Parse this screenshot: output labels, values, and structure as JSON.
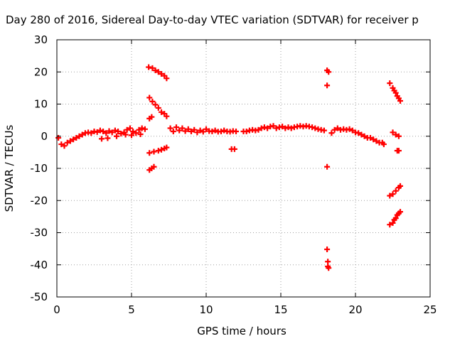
{
  "chart_data": {
    "type": "scatter",
    "title": "Day 280 of 2016, Sidereal Day-to-day VTEC variation (SDTVAR) for receiver p",
    "xlabel": "GPS time / hours",
    "ylabel": "SDTVAR / TECUs",
    "xlim": [
      0,
      25
    ],
    "ylim": [
      -50,
      30
    ],
    "x_ticks": [
      0,
      5,
      10,
      15,
      20,
      25
    ],
    "y_ticks": [
      -50,
      -40,
      -30,
      -20,
      -10,
      0,
      10,
      20,
      30
    ],
    "x_tick_labels": [
      "0",
      "5",
      "10",
      "15",
      "20",
      "25"
    ],
    "y_tick_labels": [
      "-50",
      "-40",
      "-30",
      "-20",
      "-10",
      "0",
      "10",
      "20",
      "30"
    ],
    "grid": true,
    "marker": "+",
    "series_color": "#ff0000",
    "series": [
      {
        "name": "SDTVAR",
        "points": [
          [
            0.1,
            -0.5
          ],
          [
            0.3,
            -2.5
          ],
          [
            0.5,
            -3.0
          ],
          [
            0.7,
            -2.0
          ],
          [
            0.9,
            -1.5
          ],
          [
            1.1,
            -1.0
          ],
          [
            1.3,
            -0.5
          ],
          [
            1.5,
            0.0
          ],
          [
            1.7,
            0.5
          ],
          [
            1.9,
            1.0
          ],
          [
            2.1,
            1.2
          ],
          [
            2.3,
            1.0
          ],
          [
            2.5,
            1.5
          ],
          [
            2.7,
            1.3
          ],
          [
            2.9,
            1.8
          ],
          [
            3.1,
            1.5
          ],
          [
            3.3,
            1.0
          ],
          [
            3.5,
            1.6
          ],
          [
            3.7,
            1.2
          ],
          [
            3.9,
            1.8
          ],
          [
            4.1,
            1.5
          ],
          [
            4.3,
            0.8
          ],
          [
            4.5,
            1.2
          ],
          [
            4.7,
            2.0
          ],
          [
            4.9,
            2.5
          ],
          [
            5.1,
            1.5
          ],
          [
            5.3,
            1.0
          ],
          [
            5.5,
            2.0
          ],
          [
            5.7,
            2.5
          ],
          [
            5.9,
            2.2
          ],
          [
            3.0,
            -0.8
          ],
          [
            3.4,
            -0.6
          ],
          [
            4.0,
            0.0
          ],
          [
            4.6,
            0.5
          ],
          [
            5.0,
            0.3
          ],
          [
            5.6,
            0.6
          ],
          [
            6.15,
            21.5
          ],
          [
            6.4,
            21.2
          ],
          [
            6.6,
            20.5
          ],
          [
            6.8,
            20.0
          ],
          [
            7.0,
            19.4
          ],
          [
            7.2,
            18.8
          ],
          [
            7.35,
            18.0
          ],
          [
            6.2,
            12.0
          ],
          [
            6.4,
            10.8
          ],
          [
            6.6,
            9.8
          ],
          [
            6.8,
            8.8
          ],
          [
            7.0,
            7.5
          ],
          [
            7.2,
            7.0
          ],
          [
            7.35,
            6.2
          ],
          [
            6.2,
            5.5
          ],
          [
            6.35,
            6.0
          ],
          [
            6.2,
            -10.5
          ],
          [
            6.35,
            -10.0
          ],
          [
            6.5,
            -9.5
          ],
          [
            6.2,
            -5.2
          ],
          [
            6.5,
            -4.8
          ],
          [
            6.8,
            -4.5
          ],
          [
            7.0,
            -4.2
          ],
          [
            7.2,
            -3.8
          ],
          [
            7.35,
            -3.5
          ],
          [
            7.6,
            2.5
          ],
          [
            7.8,
            1.5
          ],
          [
            8.0,
            2.8
          ],
          [
            8.2,
            1.8
          ],
          [
            8.4,
            2.5
          ],
          [
            8.6,
            1.6
          ],
          [
            8.8,
            2.2
          ],
          [
            9.0,
            1.5
          ],
          [
            9.2,
            2.0
          ],
          [
            9.4,
            1.2
          ],
          [
            9.6,
            1.8
          ],
          [
            9.8,
            1.4
          ],
          [
            10.0,
            2.2
          ],
          [
            10.2,
            1.6
          ],
          [
            10.4,
            1.5
          ],
          [
            10.6,
            1.8
          ],
          [
            10.8,
            1.4
          ],
          [
            11.0,
            1.5
          ],
          [
            11.2,
            1.8
          ],
          [
            11.4,
            1.5
          ],
          [
            11.6,
            1.4
          ],
          [
            11.8,
            1.6
          ],
          [
            12.0,
            1.5
          ],
          [
            11.7,
            -4.0
          ],
          [
            11.9,
            -4.0
          ],
          [
            12.5,
            1.5
          ],
          [
            12.7,
            1.5
          ],
          [
            12.9,
            1.8
          ],
          [
            13.1,
            2.0
          ],
          [
            13.3,
            1.8
          ],
          [
            13.5,
            2.0
          ],
          [
            13.7,
            2.5
          ],
          [
            13.9,
            2.8
          ],
          [
            14.1,
            2.5
          ],
          [
            14.3,
            3.0
          ],
          [
            14.5,
            3.2
          ],
          [
            14.7,
            2.5
          ],
          [
            14.9,
            2.8
          ],
          [
            15.1,
            3.0
          ],
          [
            15.3,
            2.5
          ],
          [
            15.5,
            2.8
          ],
          [
            15.7,
            2.5
          ],
          [
            15.9,
            2.8
          ],
          [
            16.1,
            3.0
          ],
          [
            16.3,
            3.2
          ],
          [
            16.5,
            3.0
          ],
          [
            16.7,
            3.2
          ],
          [
            16.9,
            3.0
          ],
          [
            17.1,
            2.8
          ],
          [
            17.3,
            2.5
          ],
          [
            17.5,
            2.2
          ],
          [
            17.7,
            2.0
          ],
          [
            17.9,
            1.8
          ],
          [
            18.1,
            20.5
          ],
          [
            18.2,
            20.0
          ],
          [
            18.1,
            15.8
          ],
          [
            18.1,
            -9.5
          ],
          [
            18.1,
            -35.2
          ],
          [
            18.15,
            -39.0
          ],
          [
            18.15,
            -40.5
          ],
          [
            18.2,
            -41.0
          ],
          [
            18.4,
            1.0
          ],
          [
            18.6,
            2.0
          ],
          [
            18.8,
            2.5
          ],
          [
            19.0,
            2.0
          ],
          [
            19.2,
            2.2
          ],
          [
            19.4,
            2.0
          ],
          [
            19.6,
            2.2
          ],
          [
            19.8,
            1.8
          ],
          [
            20.0,
            1.2
          ],
          [
            20.2,
            1.0
          ],
          [
            20.4,
            0.5
          ],
          [
            20.6,
            0.0
          ],
          [
            20.8,
            -0.5
          ],
          [
            21.0,
            -0.5
          ],
          [
            21.2,
            -1.0
          ],
          [
            21.4,
            -1.5
          ],
          [
            21.6,
            -2.0
          ],
          [
            21.8,
            -2.0
          ],
          [
            21.9,
            -2.5
          ],
          [
            22.3,
            16.5
          ],
          [
            22.5,
            15.0
          ],
          [
            22.6,
            14.2
          ],
          [
            22.7,
            13.5
          ],
          [
            22.8,
            12.5
          ],
          [
            22.9,
            11.8
          ],
          [
            23.0,
            11.0
          ],
          [
            22.5,
            1.2
          ],
          [
            22.7,
            0.5
          ],
          [
            22.9,
            0.0
          ],
          [
            22.8,
            -4.5
          ],
          [
            22.9,
            -4.5
          ],
          [
            22.3,
            -18.5
          ],
          [
            22.5,
            -18.0
          ],
          [
            22.7,
            -17.0
          ],
          [
            22.9,
            -16.0
          ],
          [
            23.0,
            -15.5
          ],
          [
            22.3,
            -27.5
          ],
          [
            22.5,
            -27.0
          ],
          [
            22.6,
            -26.0
          ],
          [
            22.7,
            -25.5
          ],
          [
            22.8,
            -24.5
          ],
          [
            22.9,
            -24.0
          ],
          [
            23.0,
            -23.5
          ]
        ]
      }
    ]
  }
}
